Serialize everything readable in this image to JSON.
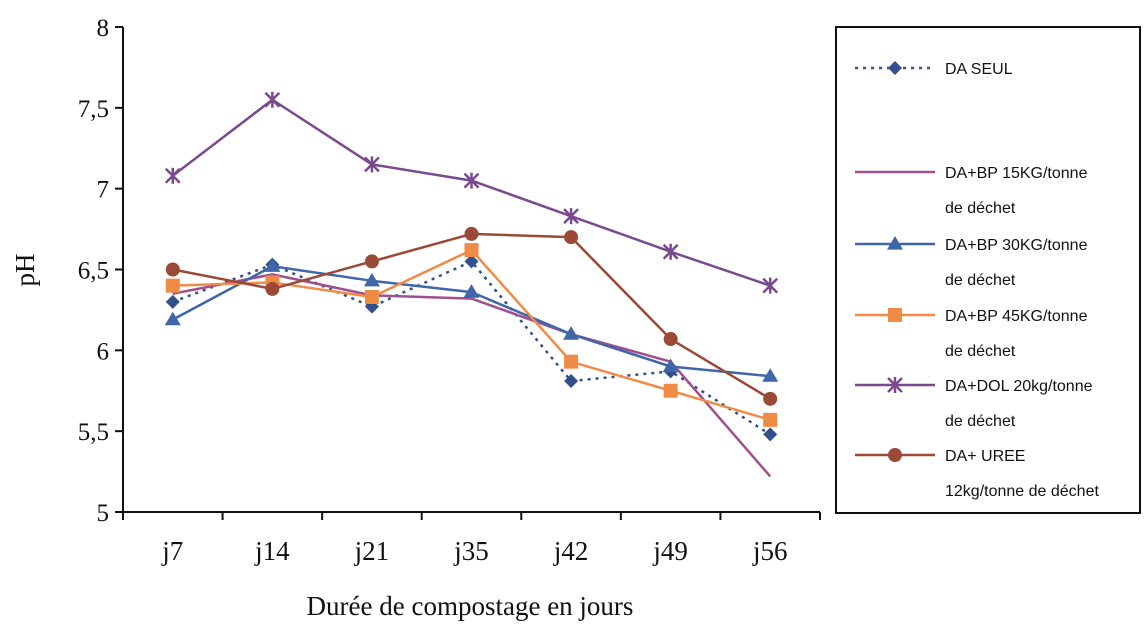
{
  "chart_data": {
    "type": "line",
    "title": "",
    "xlabel": "Durée de compostage en jours",
    "ylabel": "pH",
    "categories": [
      "j7",
      "j14",
      "j21",
      "j35",
      "j42",
      "j49",
      "j56"
    ],
    "ylim": [
      5,
      8
    ],
    "yticks": [
      "5",
      "5,5",
      "6",
      "6,5",
      "7",
      "7,5",
      "8"
    ],
    "grid": false,
    "legend_position": "right",
    "series": [
      {
        "name": "DA SEUL",
        "values": [
          6.3,
          6.53,
          6.27,
          6.55,
          5.81,
          5.87,
          5.48
        ],
        "color": "#33508a",
        "marker": "diamond",
        "dash": true
      },
      {
        "name": "DA+BP 15KG/tonne de déchet",
        "values": [
          6.35,
          6.47,
          6.34,
          6.32,
          6.1,
          5.93,
          5.22
        ],
        "color": "#a0508f",
        "marker": "none",
        "dash": false
      },
      {
        "name": "DA+BP 30KG/tonne de déchet",
        "values": [
          6.19,
          6.52,
          6.43,
          6.36,
          6.1,
          5.9,
          5.84
        ],
        "color": "#3f66a8",
        "marker": "triangle",
        "dash": false
      },
      {
        "name": "DA+BP 45KG/tonne de déchet",
        "values": [
          6.4,
          6.42,
          6.33,
          6.62,
          5.93,
          5.75,
          5.57
        ],
        "color": "#f08b46",
        "marker": "square",
        "dash": false
      },
      {
        "name": "DA+DOL 20kg/tonne de déchet",
        "values": [
          7.08,
          7.55,
          7.15,
          7.05,
          6.83,
          6.61,
          6.4
        ],
        "color": "#7a4a8f",
        "marker": "star",
        "dash": false
      },
      {
        "name": "DA+ UREE 12kg/tonne de déchet",
        "values": [
          6.5,
          6.38,
          6.55,
          6.72,
          6.7,
          6.07,
          5.7
        ],
        "color": "#9a4a36",
        "marker": "circle",
        "dash": false
      }
    ],
    "legend_lines": [
      [
        "DA SEUL"
      ],
      [
        "DA+BP 15KG/tonne",
        "de déchet"
      ],
      [
        "DA+BP 30KG/tonne",
        "de déchet"
      ],
      [
        "DA+BP 45KG/tonne",
        "de déchet"
      ],
      [
        "DA+DOL 20kg/tonne",
        "de déchet"
      ],
      [
        "DA+ UREE",
        "12kg/tonne de déchet"
      ]
    ]
  }
}
